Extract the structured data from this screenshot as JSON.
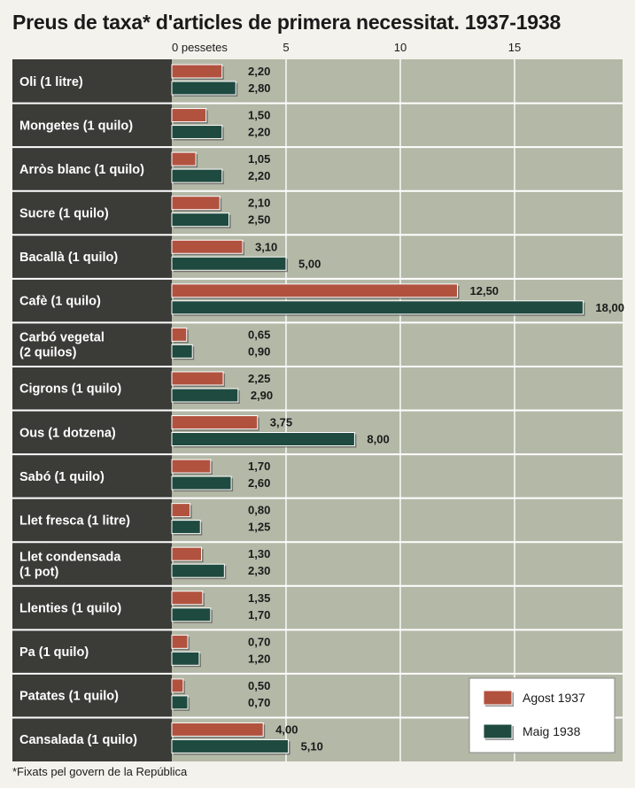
{
  "colors": {
    "series_1": "#b1523f",
    "series_2": "#1e4a3f",
    "plot_bg": "#b4b8a7",
    "label_bg": "#3b3b38",
    "grid": "#ffffff"
  },
  "footnote": "*Fixats pel govern de la República",
  "chart_data": {
    "type": "bar",
    "orientation": "horizontal",
    "title": "Preus de taxa* d'articles de primera necessitat. 1937-1938",
    "x_axis_unit": "pessetes",
    "xlim": [
      0,
      19
    ],
    "ticks": [
      {
        "value": 0,
        "label": "0 pessetes"
      },
      {
        "value": 5,
        "label": "5"
      },
      {
        "value": 10,
        "label": "10"
      },
      {
        "value": 15,
        "label": "15"
      }
    ],
    "grid": true,
    "legend_position": "bottom-right",
    "categories": [
      [
        "Oli (1 litre)"
      ],
      [
        "Mongetes (1 quilo)"
      ],
      [
        "Arròs blanc (1 quilo)"
      ],
      [
        "Sucre (1 quilo)"
      ],
      [
        "Bacallà (1 quilo)"
      ],
      [
        "Cafè (1 quilo)"
      ],
      [
        "Carbó vegetal",
        "(2 quilos)"
      ],
      [
        "Cigrons (1 quilo)"
      ],
      [
        "Ous (1 dotzena)"
      ],
      [
        "Sabó (1 quilo)"
      ],
      [
        "Llet fresca (1 litre)"
      ],
      [
        "Llet condensada",
        "(1 pot)"
      ],
      [
        "Llenties (1 quilo)"
      ],
      [
        "Pa (1 quilo)"
      ],
      [
        "Patates (1 quilo)"
      ],
      [
        "Cansalada (1 quilo)"
      ]
    ],
    "series": [
      {
        "name": "Agost 1937",
        "values": [
          2.2,
          1.5,
          1.05,
          2.1,
          3.1,
          12.5,
          0.65,
          2.25,
          3.75,
          1.7,
          0.8,
          1.3,
          1.35,
          0.7,
          0.5,
          4.0
        ],
        "labels": [
          "2,20",
          "1,50",
          "1,05",
          "2,10",
          "3,10",
          "12,50",
          "0,65",
          "2,25",
          "3,75",
          "1,70",
          "0,80",
          "1,30",
          "1,35",
          "0,70",
          "0,50",
          "4,00"
        ]
      },
      {
        "name": "Maig 1938",
        "values": [
          2.8,
          2.2,
          2.2,
          2.5,
          5.0,
          18.0,
          0.9,
          2.9,
          8.0,
          2.6,
          1.25,
          2.3,
          1.7,
          1.2,
          0.7,
          5.1
        ],
        "labels": [
          "2,80",
          "2,20",
          "2,20",
          "2,50",
          "5,00",
          "18,00",
          "0,90",
          "2,90",
          "8,00",
          "2,60",
          "1,25",
          "2,30",
          "1,70",
          "1,20",
          "0,70",
          "5,10"
        ]
      }
    ]
  }
}
